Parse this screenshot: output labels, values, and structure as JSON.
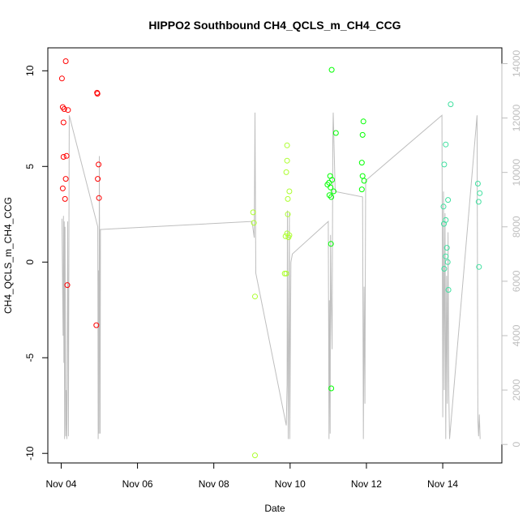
{
  "chart_data": {
    "type": "scatter",
    "title": "HIPPO2 Southbound CH4_QCLS_m_CH4_CCG",
    "xlabel": "Date",
    "ylabel": "CH4_QCLS_m_CH4_CCG",
    "x_unit": "days since Nov 04",
    "xlim": [
      -0.35,
      11.55
    ],
    "ylim": [
      -10.5,
      11.2
    ],
    "x_ticks": [
      {
        "value": 0,
        "label": "Nov 04"
      },
      {
        "value": 2,
        "label": "Nov 06"
      },
      {
        "value": 4,
        "label": "Nov 08"
      },
      {
        "value": 6,
        "label": "Nov 10"
      },
      {
        "value": 8,
        "label": "Nov 12"
      },
      {
        "value": 10,
        "label": "Nov 14"
      }
    ],
    "y_ticks": [
      {
        "value": -10,
        "label": "-10"
      },
      {
        "value": -5,
        "label": "-5"
      },
      {
        "value": 0,
        "label": "0"
      },
      {
        "value": 5,
        "label": "5"
      },
      {
        "value": 10,
        "label": "10"
      }
    ],
    "y2": {
      "lim": [
        -680,
        14580
      ],
      "ticks": [
        {
          "value": 0,
          "label": "0"
        },
        {
          "value": 2000,
          "label": "2000"
        },
        {
          "value": 4000,
          "label": "4000"
        },
        {
          "value": 6000,
          "label": "6000"
        },
        {
          "value": 8000,
          "label": "8000"
        },
        {
          "value": 10000,
          "label": "10000"
        },
        {
          "value": 12000,
          "label": "12000"
        },
        {
          "value": 14000,
          "label": "14000"
        }
      ],
      "color": "#bebebe"
    },
    "grid": false,
    "series": [
      {
        "color": "#ff0000",
        "points": [
          [
            0.02,
            9.6
          ],
          [
            0.04,
            8.1
          ],
          [
            0.08,
            8.0
          ],
          [
            0.18,
            7.95
          ],
          [
            0.06,
            7.3
          ],
          [
            0.06,
            5.5
          ],
          [
            0.14,
            5.55
          ],
          [
            0.12,
            4.35
          ],
          [
            0.04,
            3.85
          ],
          [
            0.1,
            3.3
          ],
          [
            0.12,
            10.5
          ],
          [
            0.16,
            -1.2
          ],
          [
            0.94,
            8.85
          ],
          [
            0.95,
            8.8
          ],
          [
            0.98,
            5.1
          ],
          [
            0.96,
            4.35
          ],
          [
            0.99,
            3.35
          ],
          [
            0.92,
            -3.3
          ]
        ]
      },
      {
        "color": "#adff2f",
        "points": [
          [
            5.03,
            2.6
          ],
          [
            5.05,
            2.05
          ],
          [
            5.08,
            -1.8
          ],
          [
            5.08,
            -10.1
          ],
          [
            5.88,
            1.35
          ],
          [
            5.92,
            1.5
          ],
          [
            5.96,
            1.3
          ],
          [
            5.98,
            1.4
          ],
          [
            5.86,
            -0.6
          ],
          [
            5.9,
            -0.6
          ],
          [
            5.92,
            6.1
          ],
          [
            5.92,
            5.3
          ],
          [
            5.9,
            4.7
          ],
          [
            5.98,
            3.7
          ],
          [
            5.94,
            3.3
          ],
          [
            5.94,
            2.5
          ]
        ]
      },
      {
        "color": "#00ff00",
        "points": [
          [
            7.09,
            10.05
          ],
          [
            7.2,
            6.75
          ],
          [
            7.05,
            4.5
          ],
          [
            7.1,
            4.3
          ],
          [
            6.98,
            4.05
          ],
          [
            7.02,
            4.15
          ],
          [
            7.06,
            3.9
          ],
          [
            7.14,
            3.7
          ],
          [
            7.03,
            3.5
          ],
          [
            7.08,
            3.4
          ],
          [
            7.07,
            0.95
          ],
          [
            7.08,
            -6.6
          ],
          [
            7.92,
            7.35
          ],
          [
            7.9,
            6.65
          ],
          [
            7.88,
            5.2
          ],
          [
            7.9,
            4.5
          ],
          [
            7.94,
            4.25
          ],
          [
            7.88,
            3.8
          ]
        ]
      },
      {
        "color": "#40e0a0",
        "points": [
          [
            10.21,
            8.25
          ],
          [
            10.08,
            6.15
          ],
          [
            10.04,
            5.1
          ],
          [
            10.14,
            3.25
          ],
          [
            10.02,
            2.9
          ],
          [
            10.08,
            2.2
          ],
          [
            10.03,
            2.0
          ],
          [
            10.11,
            0.75
          ],
          [
            10.08,
            0.3
          ],
          [
            10.13,
            0.0
          ],
          [
            10.04,
            -0.35
          ],
          [
            10.15,
            -1.45
          ],
          [
            10.92,
            4.1
          ],
          [
            10.97,
            3.6
          ],
          [
            10.94,
            3.15
          ],
          [
            10.95,
            -0.25
          ]
        ]
      }
    ],
    "secondary_line": {
      "color": "#bebebe",
      "points": [
        [
          0.02,
          8300
        ],
        [
          0.05,
          4000
        ],
        [
          0.06,
          8400
        ],
        [
          0.07,
          3000
        ],
        [
          0.08,
          8200
        ],
        [
          0.09,
          200
        ],
        [
          0.1,
          8000
        ],
        [
          0.12,
          300
        ],
        [
          0.13,
          2000
        ],
        [
          0.15,
          200
        ],
        [
          0.17,
          8200
        ],
        [
          0.19,
          300
        ],
        [
          0.21,
          12100
        ],
        [
          0.96,
          8000
        ],
        [
          0.97,
          200
        ],
        [
          0.98,
          6400
        ],
        [
          0.99,
          400
        ],
        [
          1.0,
          10600
        ],
        [
          1.02,
          400
        ],
        [
          1.03,
          7900
        ],
        [
          5.0,
          8200
        ],
        [
          5.06,
          7600
        ],
        [
          5.08,
          12200
        ],
        [
          5.1,
          6300
        ],
        [
          5.9,
          700
        ],
        [
          5.92,
          2200
        ],
        [
          5.93,
          8600
        ],
        [
          5.95,
          200
        ],
        [
          5.96,
          2000
        ],
        [
          5.98,
          8500
        ],
        [
          5.99,
          200
        ],
        [
          6.02,
          6700
        ],
        [
          6.06,
          7000
        ],
        [
          7.0,
          8200
        ],
        [
          7.02,
          200
        ],
        [
          7.03,
          5300
        ],
        [
          7.05,
          400
        ],
        [
          7.06,
          7700
        ],
        [
          7.08,
          5200
        ],
        [
          7.1,
          3500
        ],
        [
          7.12,
          11200
        ],
        [
          7.13,
          12200
        ],
        [
          7.18,
          9300
        ],
        [
          7.9,
          9100
        ],
        [
          7.92,
          200
        ],
        [
          7.94,
          5800
        ],
        [
          7.96,
          1500
        ],
        [
          7.97,
          5400
        ],
        [
          7.98,
          9700
        ],
        [
          9.98,
          12100
        ],
        [
          10.0,
          1000
        ],
        [
          10.02,
          9300
        ],
        [
          10.04,
          2000
        ],
        [
          10.06,
          8500
        ],
        [
          10.08,
          200
        ],
        [
          10.1,
          6200
        ],
        [
          10.12,
          1500
        ],
        [
          10.14,
          7800
        ],
        [
          10.16,
          1800
        ],
        [
          10.18,
          200
        ],
        [
          10.9,
          12100
        ],
        [
          10.92,
          900
        ],
        [
          10.94,
          300
        ],
        [
          10.96,
          1100
        ],
        [
          10.98,
          200
        ]
      ]
    }
  }
}
